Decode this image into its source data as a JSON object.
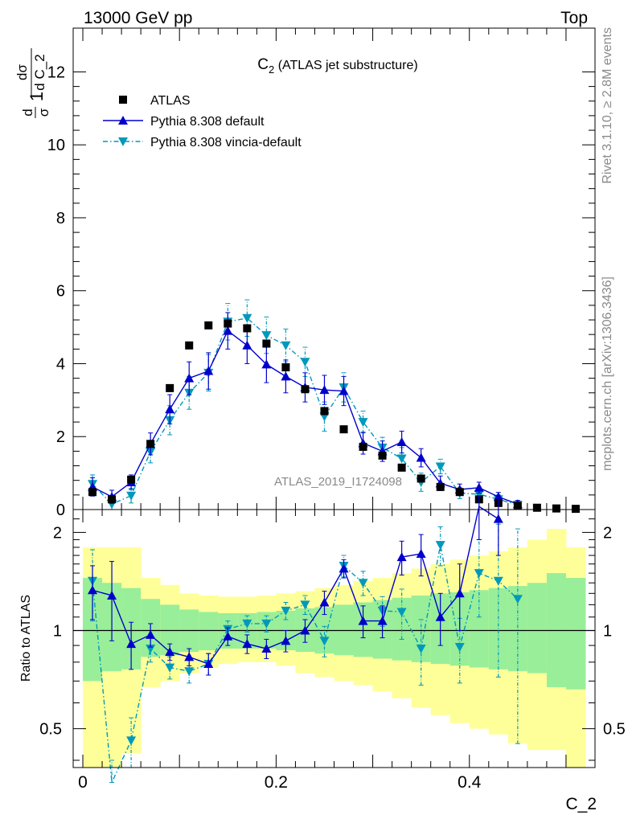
{
  "header": {
    "left": "13000 GeV pp",
    "right": "Top"
  },
  "side_text": {
    "rivet": "Rivet 3.1.10, ≥ 2.8M events",
    "mcplots": "mcplots.cern.ch [arXiv:1306.3436]"
  },
  "watermark": "ATLAS_2019_I1724098",
  "colors": {
    "data": "#000000",
    "pythia": "#0000cc",
    "vincia": "#0099bb",
    "band_inner": "#99ee99",
    "band_outer": "#ffff99"
  },
  "chart_data": [
    {
      "type": "scatter",
      "title": "C₂ (ATLAS jet substructure)",
      "title_main": "C",
      "title_sub": "2",
      "title_rest": " (ATLAS jet substructure)",
      "xlabel": "",
      "ylabel": "1/σ dσ/d C_2",
      "xlim": [
        -0.01,
        0.53
      ],
      "ylim": [
        0,
        13.2
      ],
      "yticks": [
        0,
        2,
        4,
        6,
        8,
        10,
        12
      ],
      "legend_position": "top-left",
      "x": [
        0.01,
        0.03,
        0.05,
        0.07,
        0.09,
        0.11,
        0.13,
        0.15,
        0.17,
        0.19,
        0.21,
        0.23,
        0.25,
        0.27,
        0.29,
        0.31,
        0.33,
        0.35,
        0.37,
        0.39,
        0.41,
        0.43,
        0.45,
        0.47,
        0.49,
        0.51
      ],
      "series": [
        {
          "name": "ATLAS",
          "style": "data",
          "values": [
            0.48,
            0.28,
            0.82,
            1.8,
            3.33,
            4.5,
            5.05,
            5.1,
            4.97,
            4.55,
            3.9,
            3.3,
            2.7,
            2.2,
            1.72,
            1.48,
            1.15,
            0.85,
            0.62,
            0.48,
            0.28,
            0.18,
            0.1,
            0.05,
            0.03,
            0.02
          ]
        },
        {
          "name": "Pythia 8.308 default",
          "style": "solid",
          "values": [
            0.62,
            0.35,
            0.75,
            1.8,
            2.75,
            3.6,
            3.8,
            4.9,
            4.5,
            3.98,
            3.65,
            3.35,
            3.28,
            3.25,
            1.82,
            1.6,
            1.85,
            1.42,
            0.72,
            0.55,
            0.6,
            0.35,
            0.15
          ],
          "errors": [
            0.25,
            0.18,
            0.2,
            0.3,
            0.4,
            0.45,
            0.5,
            0.5,
            0.5,
            0.5,
            0.45,
            0.4,
            0.4,
            0.4,
            0.3,
            0.28,
            0.3,
            0.25,
            0.2,
            0.15,
            0.15,
            0.12,
            0.1
          ]
        },
        {
          "name": "Pythia 8.308 vincia-default",
          "style": "dashdot",
          "values": [
            0.7,
            0.15,
            0.38,
            1.58,
            2.45,
            3.2,
            3.75,
            5.15,
            5.25,
            4.78,
            4.5,
            4.05,
            2.55,
            3.35,
            2.4,
            1.7,
            1.4,
            0.75,
            1.18,
            0.45,
            0.42,
            0.28,
            0.13
          ],
          "errors": [
            0.25,
            0.15,
            0.2,
            0.3,
            0.4,
            0.45,
            0.5,
            0.5,
            0.5,
            0.5,
            0.45,
            0.4,
            0.4,
            0.4,
            0.3,
            0.28,
            0.3,
            0.25,
            0.2,
            0.15,
            0.15,
            0.12,
            0.1
          ]
        }
      ]
    },
    {
      "type": "line",
      "xlabel": "C_2",
      "ylabel": "Ratio to ATLAS",
      "y_scale": "log",
      "xlim": [
        -0.01,
        0.53
      ],
      "ylim": [
        0.38,
        2.35
      ],
      "xticks": [
        0,
        0.2,
        0.4
      ],
      "xtick_labels": [
        "0",
        "0.2",
        "0.4"
      ],
      "yticks": [
        0.5,
        1,
        2
      ],
      "ytick_labels": [
        "0.5",
        "1",
        "2"
      ],
      "bin_edges": [
        0,
        0.02,
        0.04,
        0.06,
        0.08,
        0.1,
        0.12,
        0.14,
        0.16,
        0.18,
        0.2,
        0.22,
        0.24,
        0.26,
        0.28,
        0.3,
        0.32,
        0.34,
        0.36,
        0.38,
        0.4,
        0.42,
        0.44,
        0.46,
        0.48,
        0.5,
        0.52
      ],
      "band_inner": {
        "lower": [
          0.7,
          0.75,
          0.76,
          0.83,
          0.84,
          0.86,
          0.87,
          0.88,
          0.88,
          0.88,
          0.87,
          0.86,
          0.85,
          0.84,
          0.83,
          0.82,
          0.81,
          0.8,
          0.79,
          0.78,
          0.77,
          0.76,
          0.75,
          0.74,
          0.67,
          0.66
        ],
        "upper": [
          1.45,
          1.4,
          1.35,
          1.25,
          1.2,
          1.16,
          1.14,
          1.13,
          1.13,
          1.14,
          1.15,
          1.17,
          1.18,
          1.2,
          1.22,
          1.24,
          1.26,
          1.28,
          1.3,
          1.31,
          1.33,
          1.35,
          1.37,
          1.4,
          1.5,
          1.45
        ]
      },
      "band_outer": {
        "lower": [
          0.38,
          0.38,
          0.42,
          0.67,
          0.7,
          0.74,
          0.77,
          0.79,
          0.8,
          0.8,
          0.78,
          0.74,
          0.72,
          0.7,
          0.68,
          0.65,
          0.62,
          0.58,
          0.55,
          0.52,
          0.5,
          0.48,
          0.45,
          0.43,
          0.43,
          0.38
        ],
        "upper": [
          1.8,
          1.8,
          1.8,
          1.45,
          1.38,
          1.3,
          1.28,
          1.27,
          1.27,
          1.28,
          1.3,
          1.32,
          1.35,
          1.38,
          1.42,
          1.45,
          1.5,
          1.55,
          1.6,
          1.65,
          1.7,
          1.75,
          1.8,
          1.9,
          2.05,
          1.8
        ]
      },
      "series": [
        {
          "name": "Pythia 8.308 default",
          "style": "solid",
          "values": [
            1.33,
            1.28,
            0.91,
            0.97,
            0.86,
            0.83,
            0.79,
            0.96,
            0.91,
            0.88,
            0.93,
            1.0,
            1.22,
            1.55,
            1.07,
            1.07,
            1.68,
            1.72,
            1.1,
            1.3,
            2.4,
            2.2,
            null
          ],
          "errors": [
            0.25,
            0.35,
            0.15,
            0.08,
            0.05,
            0.05,
            0.06,
            0.06,
            0.06,
            0.06,
            0.07,
            0.08,
            0.1,
            0.1,
            0.12,
            0.12,
            0.2,
            0.25,
            0.2,
            0.3,
            0.5,
            0.5,
            null
          ]
        },
        {
          "name": "Pythia 8.308 vincia-default",
          "style": "dashdot",
          "values": [
            1.42,
            0.3,
            0.46,
            0.88,
            0.77,
            0.75,
            0.79,
            1.01,
            1.05,
            1.05,
            1.15,
            1.2,
            0.93,
            1.58,
            1.4,
            1.15,
            1.14,
            0.88,
            1.83,
            0.89,
            1.5,
            1.42,
            1.25
          ],
          "errors": [
            0.35,
            0.1,
            0.08,
            0.08,
            0.06,
            0.06,
            0.06,
            0.06,
            0.06,
            0.06,
            0.07,
            0.08,
            0.1,
            0.12,
            0.12,
            0.12,
            0.2,
            0.2,
            0.25,
            0.2,
            0.4,
            0.7,
            0.8
          ]
        }
      ]
    }
  ]
}
